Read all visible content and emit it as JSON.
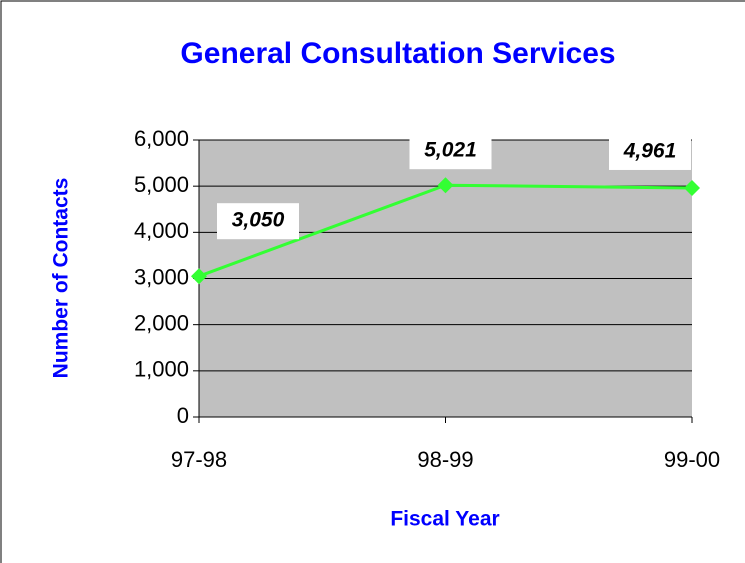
{
  "chart_data": {
    "type": "line",
    "title": "General Consultation Services",
    "xlabel": "Fiscal Year",
    "ylabel": "Number of Contacts",
    "categories": [
      "97-98",
      "98-99",
      "99-00"
    ],
    "series": [
      {
        "name": "Contacts",
        "color": "#33ff33",
        "values": [
          3050,
          5021,
          4961
        ],
        "value_labels": [
          "3,050",
          "5,021",
          "4,961"
        ]
      }
    ],
    "ylim": [
      0,
      6000
    ],
    "yticks": [
      0,
      {
        "value": 1000,
        "label": "1,000"
      },
      {
        "value": 2000,
        "label": "2,000"
      },
      {
        "value": 3000,
        "label": "3,000"
      },
      {
        "value": 4000,
        "label": "4,000"
      },
      {
        "value": 5000,
        "label": "5,000"
      },
      {
        "value": 6000,
        "label": "6,000"
      }
    ],
    "grid": true,
    "plot_background": "#c0c0c0",
    "text_color": "#0000ff"
  }
}
